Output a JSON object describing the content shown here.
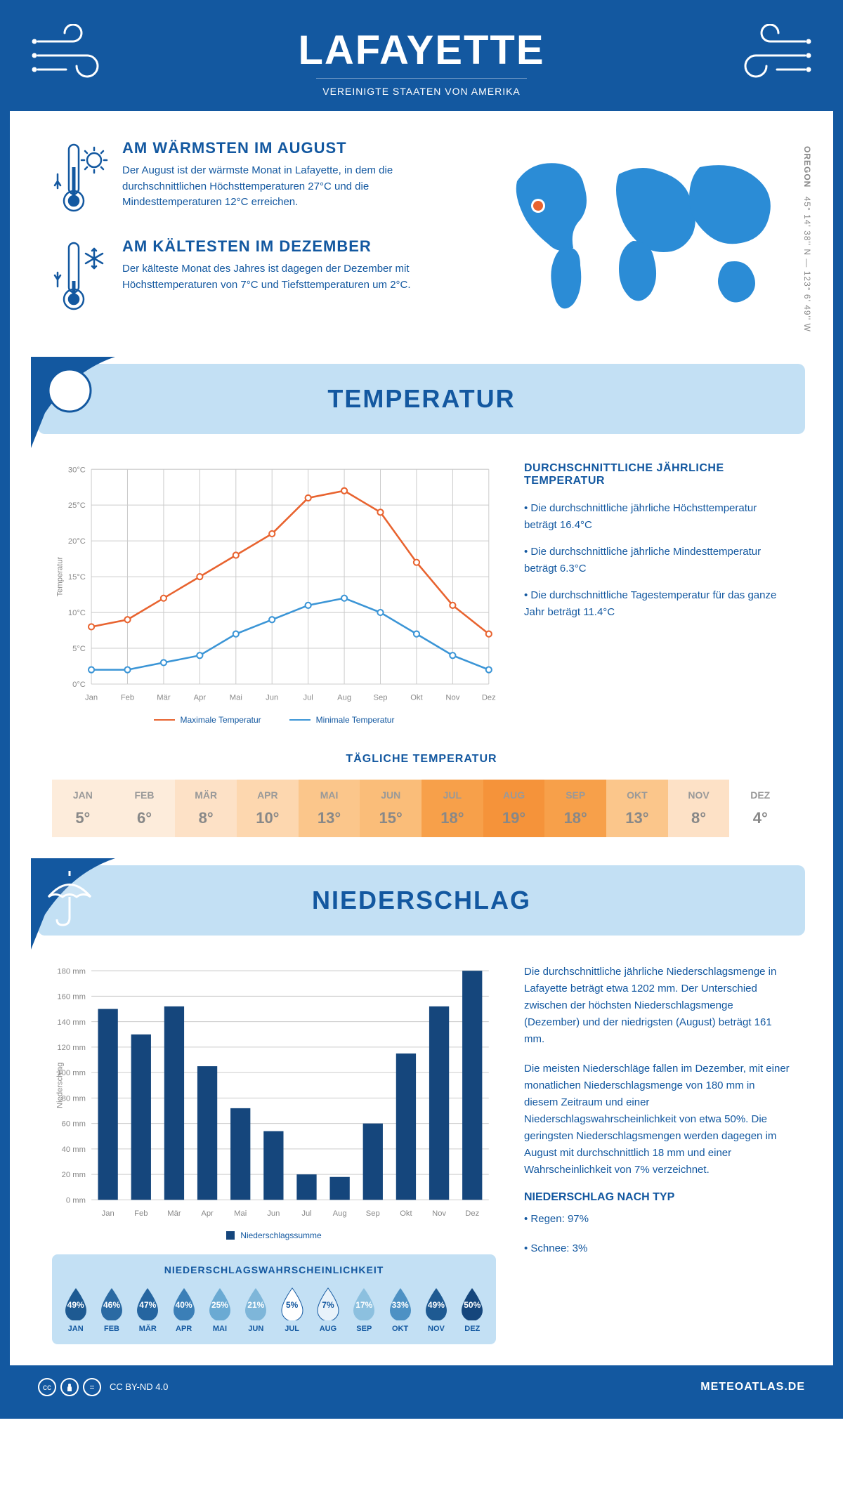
{
  "header": {
    "title": "LAFAYETTE",
    "subtitle": "VEREINIGTE STAATEN VON AMERIKA"
  },
  "coords": {
    "state": "OREGON",
    "text": "45° 14' 38'' N — 123° 6' 49'' W"
  },
  "warmest": {
    "title": "AM WÄRMSTEN IM AUGUST",
    "text": "Der August ist der wärmste Monat in Lafayette, in dem die durchschnittlichen Höchsttemperaturen 27°C und die Mindesttemperaturen 12°C erreichen."
  },
  "coldest": {
    "title": "AM KÄLTESTEN IM DEZEMBER",
    "text": "Der kälteste Monat des Jahres ist dagegen der Dezember mit Höchsttemperaturen von 7°C und Tiefsttemperaturen um 2°C."
  },
  "temp_banner": "TEMPERATUR",
  "precip_banner": "NIEDERSCHLAG",
  "temp_chart": {
    "months": [
      "Jan",
      "Feb",
      "Mär",
      "Apr",
      "Mai",
      "Jun",
      "Jul",
      "Aug",
      "Sep",
      "Okt",
      "Nov",
      "Dez"
    ],
    "max": [
      8,
      9,
      12,
      15,
      18,
      21,
      26,
      27,
      24,
      17,
      11,
      7
    ],
    "min": [
      2,
      2,
      3,
      4,
      7,
      9,
      11,
      12,
      10,
      7,
      4,
      2
    ],
    "max_color": "#e8632f",
    "min_color": "#3b95d6",
    "ylabel": "Temperatur",
    "ylim": [
      0,
      30
    ],
    "ytick_step": 5,
    "grid_color": "#cccccc",
    "axis_color": "#888888",
    "legend_max": "Maximale Temperatur",
    "legend_min": "Minimale Temperatur"
  },
  "temp_info": {
    "title": "DURCHSCHNITTLICHE JÄHRLICHE TEMPERATUR",
    "b1": "• Die durchschnittliche jährliche Höchsttemperatur beträgt 16.4°C",
    "b2": "• Die durchschnittliche jährliche Mindesttemperatur beträgt 6.3°C",
    "b3": "• Die durchschnittliche Tagestemperatur für das ganze Jahr beträgt 11.4°C"
  },
  "daily": {
    "title": "TÄGLICHE TEMPERATUR",
    "months": [
      "JAN",
      "FEB",
      "MÄR",
      "APR",
      "MAI",
      "JUN",
      "JUL",
      "AUG",
      "SEP",
      "OKT",
      "NOV",
      "DEZ"
    ],
    "values": [
      "5°",
      "6°",
      "8°",
      "10°",
      "13°",
      "15°",
      "18°",
      "19°",
      "18°",
      "13°",
      "8°",
      "4°"
    ],
    "colors": [
      "#fdecdb",
      "#fdecdb",
      "#fde1c6",
      "#fdd7af",
      "#fbc68b",
      "#fabd79",
      "#f7a04a",
      "#f5933a",
      "#f7a04a",
      "#fbc68b",
      "#fde1c6",
      "#ffffff"
    ]
  },
  "precip_chart": {
    "months": [
      "Jan",
      "Feb",
      "Mär",
      "Apr",
      "Mai",
      "Jun",
      "Jul",
      "Aug",
      "Sep",
      "Okt",
      "Nov",
      "Dez"
    ],
    "values": [
      150,
      130,
      152,
      105,
      72,
      54,
      20,
      18,
      60,
      115,
      152,
      180
    ],
    "bar_color": "#15467c",
    "ylabel": "Niederschlag",
    "ylim": [
      0,
      180
    ],
    "ytick_step": 20,
    "grid_color": "#cccccc",
    "axis_color": "#888888",
    "legend": "Niederschlagssumme"
  },
  "precip_text": {
    "p1": "Die durchschnittliche jährliche Niederschlagsmenge in Lafayette beträgt etwa 1202 mm. Der Unterschied zwischen der höchsten Niederschlagsmenge (Dezember) und der niedrigsten (August) beträgt 161 mm.",
    "p2": "Die meisten Niederschläge fallen im Dezember, mit einer monatlichen Niederschlagsmenge von 180 mm in diesem Zeitraum und einer Niederschlagswahrscheinlichkeit von etwa 50%. Die geringsten Niederschlagsmengen werden dagegen im August mit durchschnittlich 18 mm und einer Wahrscheinlichkeit von 7% verzeichnet.",
    "type_title": "NIEDERSCHLAG NACH TYP",
    "type1": "• Regen: 97%",
    "type2": "• Schnee: 3%"
  },
  "prob": {
    "title": "NIEDERSCHLAGSWAHRSCHEINLICHKEIT",
    "months": [
      "JAN",
      "FEB",
      "MÄR",
      "APR",
      "MAI",
      "JUN",
      "JUL",
      "AUG",
      "SEP",
      "OKT",
      "NOV",
      "DEZ"
    ],
    "values": [
      "49%",
      "46%",
      "47%",
      "40%",
      "25%",
      "21%",
      "5%",
      "7%",
      "17%",
      "33%",
      "49%",
      "50%"
    ],
    "colors": [
      "#1e5a92",
      "#2a6aa3",
      "#2565a0",
      "#3b7fb7",
      "#6aaad3",
      "#7eb6d9",
      "#ffffff",
      "#e8f2fa",
      "#8cc0df",
      "#4d91c4",
      "#1e5a92",
      "#15467c"
    ],
    "light": [
      false,
      false,
      false,
      false,
      false,
      false,
      true,
      true,
      false,
      false,
      false,
      false
    ]
  },
  "footer": {
    "license": "CC BY-ND 4.0",
    "site": "METEOATLAS.DE"
  }
}
